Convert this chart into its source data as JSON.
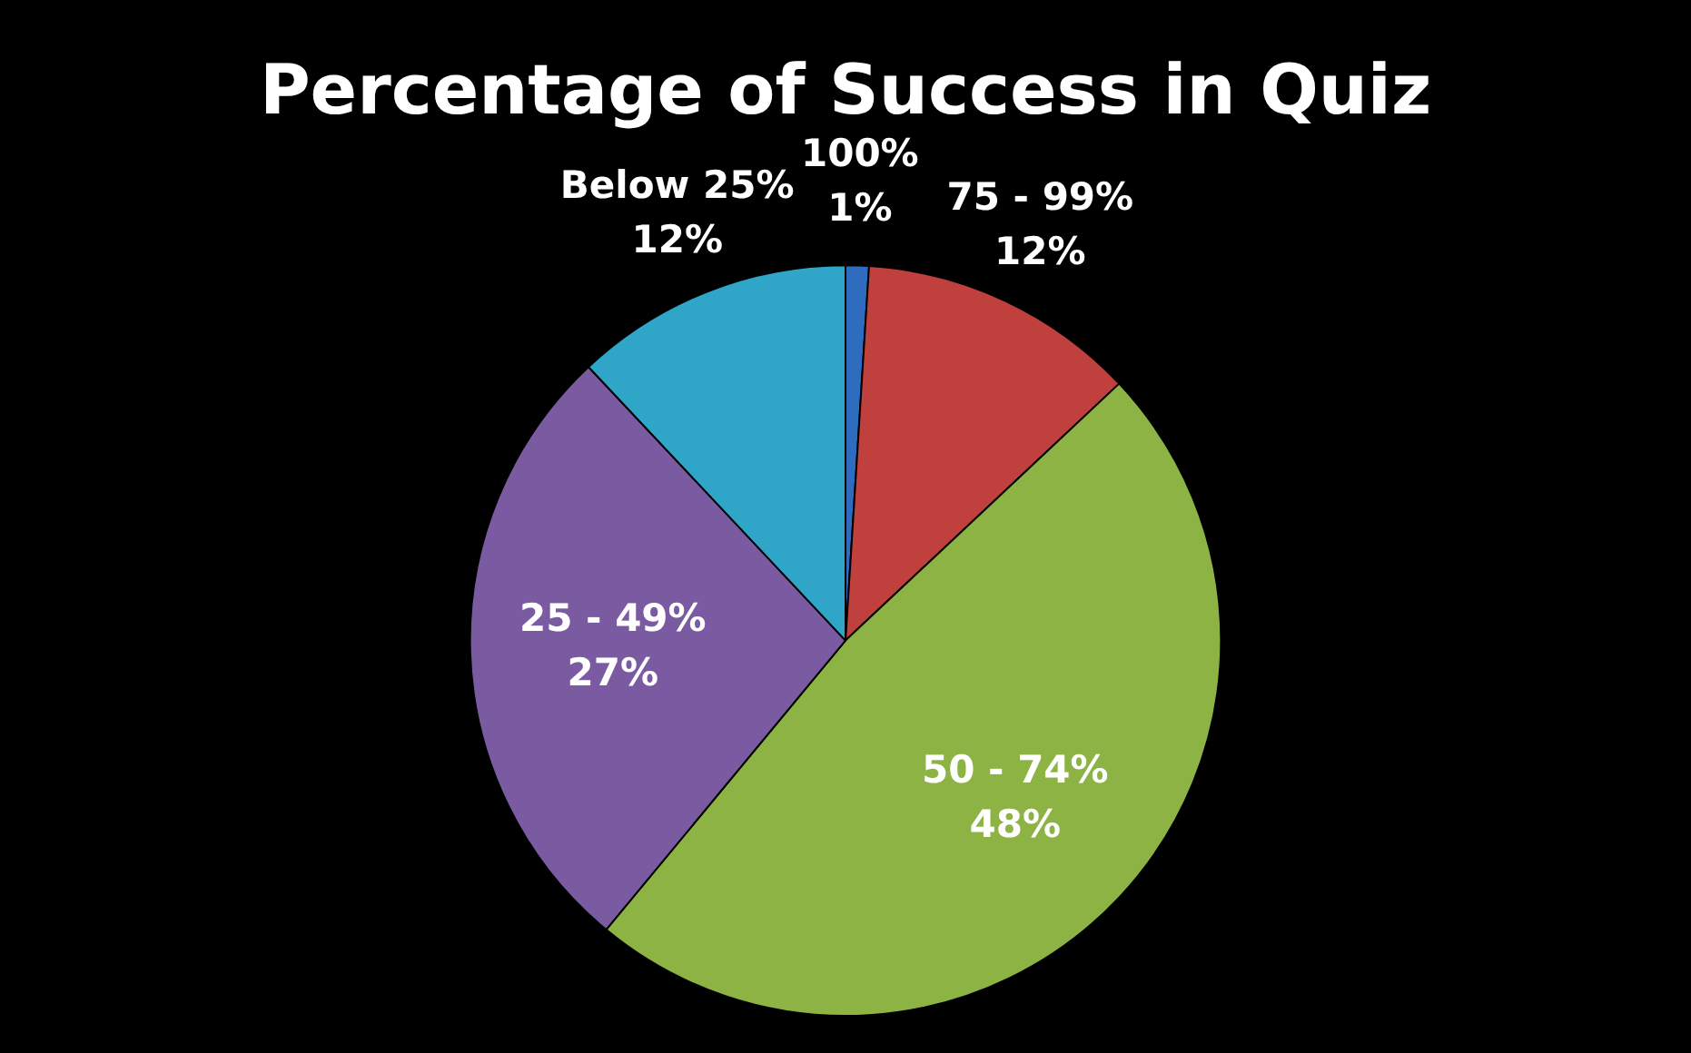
{
  "chart_data": {
    "type": "pie",
    "title": "Percentage of Success in Quiz",
    "categories": [
      "100%",
      "75 - 99%",
      "50 - 74%",
      "25 - 49%",
      "Below 25%"
    ],
    "values": [
      1,
      12,
      48,
      27,
      12
    ],
    "value_labels": [
      "1%",
      "12%",
      "48%",
      "27%",
      "12%"
    ],
    "colors": [
      "#2f6bbf",
      "#c0403d",
      "#8db344",
      "#7a5ba1",
      "#2fa6c8"
    ],
    "legend": false
  }
}
